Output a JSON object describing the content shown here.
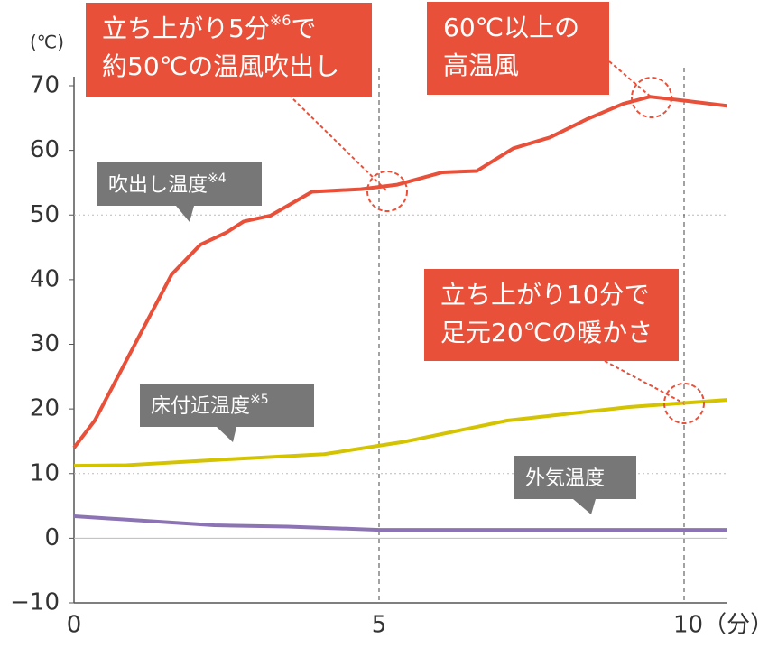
{
  "chart_data": {
    "type": "line",
    "y_unit": "(℃)",
    "xlim": [
      0,
      10.7
    ],
    "ylim": [
      -10,
      70
    ],
    "xticks": [
      0,
      5,
      {
        "value": 10,
        "label": "10（分）"
      }
    ],
    "yticks": [
      {
        "value": -10,
        "label": "−10"
      },
      0,
      10,
      20,
      30,
      40,
      50,
      60,
      70
    ],
    "dotted_grid": [
      10,
      50
    ],
    "zero_line": true,
    "vlines": [
      5,
      10
    ],
    "series": [
      {
        "name": "吹出し温度",
        "note": "※4",
        "color": "#e8503a",
        "x": [
          0,
          0.34,
          1.6,
          2.07,
          2.5,
          2.78,
          3.22,
          3.9,
          4.7,
          5.3,
          6.04,
          6.6,
          7.2,
          7.8,
          8.4,
          9.0,
          9.44,
          10,
          10.7
        ],
        "values": [
          14,
          18.2,
          40.8,
          45.4,
          47.3,
          49,
          49.9,
          53.6,
          54,
          54.7,
          56.6,
          56.8,
          60.3,
          62,
          64.8,
          67.2,
          68.3,
          67.7,
          66.9
        ]
      },
      {
        "name": "床付近温度",
        "note": "※5",
        "color": "#d4c300",
        "x": [
          0,
          0.86,
          2.5,
          4.1,
          5.4,
          7.1,
          9.1,
          10.7
        ],
        "values": [
          11.2,
          11.3,
          12.2,
          13,
          14.9,
          18.2,
          20.3,
          21.4
        ]
      },
      {
        "name": "外気温度",
        "color": "#8c74b4",
        "x": [
          0,
          2.3,
          3.5,
          5,
          10.7
        ],
        "values": [
          3.4,
          2,
          1.8,
          1.3,
          1.3
        ]
      }
    ],
    "annotations": [
      {
        "lines": [
          [
            "立ち上がり5分",
            "※6",
            "で"
          ],
          [
            "約50℃の温風吹出し"
          ]
        ]
      },
      {
        "lines": [
          [
            "60℃以上の"
          ],
          [
            "高温風"
          ]
        ]
      },
      {
        "lines": [
          [
            "立ち上がり10分で"
          ],
          [
            "足元20℃の暖かさ"
          ]
        ]
      }
    ]
  }
}
